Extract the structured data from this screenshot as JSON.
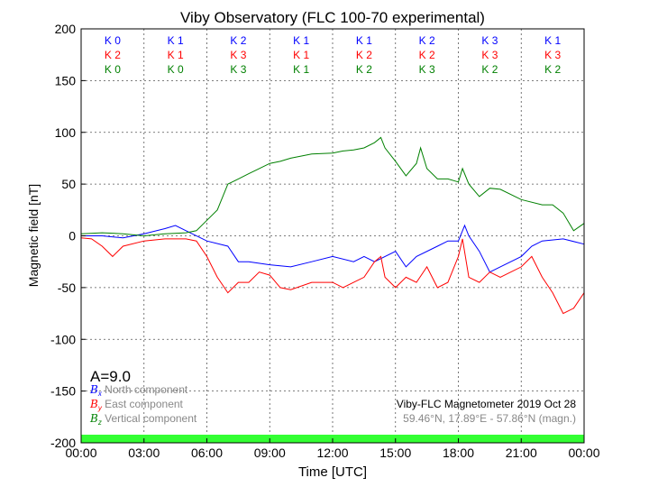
{
  "chart_data": {
    "type": "line",
    "title": "Viby Observatory (FLC 100-70 experimental)",
    "xlabel": "Time [UTC]",
    "ylabel": "Magnetic field [nT]",
    "xlim": [
      0,
      24
    ],
    "ylim": [
      -200,
      200
    ],
    "grid": true,
    "xticks": [
      "00:00",
      "03:00",
      "06:00",
      "09:00",
      "12:00",
      "15:00",
      "18:00",
      "21:00",
      "00:00"
    ],
    "yticks": [
      200,
      150,
      100,
      50,
      0,
      -50,
      -100,
      -150,
      -200
    ],
    "k_indices": {
      "x": [
        "K 0",
        "K 1",
        "K 2",
        "K 1",
        "K 1",
        "K 2",
        "K 3",
        "K 1"
      ],
      "y": [
        "K 2",
        "K 1",
        "K 3",
        "K 1",
        "K 2",
        "K 2",
        "K 3",
        "K 3"
      ],
      "z": [
        "K 0",
        "K 0",
        "K 3",
        "K 1",
        "K 2",
        "K 3",
        "K 2",
        "K 2"
      ]
    },
    "a_index": "A=9.0",
    "legend": [
      {
        "sym": "B",
        "sub": "x",
        "label": "North component",
        "color": "#0000ff"
      },
      {
        "sym": "B",
        "sub": "y",
        "label": "East component",
        "color": "#ff0000"
      },
      {
        "sym": "B",
        "sub": "z",
        "label": "Vertical component",
        "color": "#008000"
      }
    ],
    "legend_placement": "bottom-left",
    "info_line1": "Viby-FLC Magnetometer 2019 Oct 28",
    "info_line2": "59.46°N, 17.89°E - 57.86°N (magn.)",
    "status_bar_color": "#33ff33",
    "series": [
      {
        "name": "Bx",
        "color": "#0000ff",
        "t": [
          0,
          1,
          2,
          3,
          4,
          4.5,
          5,
          6,
          7,
          7.5,
          8,
          9,
          10,
          11,
          12,
          13,
          13.5,
          14,
          15,
          15.5,
          16,
          17,
          17.5,
          18,
          18.3,
          18.5,
          19,
          19.5,
          20,
          21,
          21.5,
          22,
          23,
          24
        ],
        "v": [
          0,
          0,
          -2,
          2,
          7,
          10,
          5,
          -5,
          -10,
          -25,
          -25,
          -28,
          -30,
          -25,
          -20,
          -25,
          -20,
          -25,
          -15,
          -30,
          -20,
          -10,
          -5,
          -5,
          10,
          0,
          -15,
          -35,
          -30,
          -20,
          -10,
          -5,
          -3,
          -8
        ]
      },
      {
        "name": "By",
        "color": "#ff0000",
        "t": [
          0,
          0.5,
          1,
          1.5,
          2,
          3,
          4,
          5,
          5.5,
          6,
          6.5,
          7,
          7.5,
          8,
          8.5,
          9,
          9.5,
          10,
          11,
          12,
          12.5,
          13,
          13.5,
          14,
          14.3,
          14.5,
          15,
          15.5,
          16,
          16.5,
          17,
          17.5,
          18,
          18.2,
          18.5,
          19,
          19.5,
          20,
          21,
          21.5,
          22,
          22.5,
          23,
          23.5,
          24
        ],
        "v": [
          -2,
          -3,
          -10,
          -20,
          -10,
          -5,
          -3,
          -3,
          -5,
          -20,
          -40,
          -55,
          -45,
          -45,
          -35,
          -38,
          -50,
          -52,
          -45,
          -45,
          -50,
          -45,
          -40,
          -25,
          -20,
          -40,
          -50,
          -40,
          -45,
          -30,
          -50,
          -45,
          -20,
          -3,
          -40,
          -45,
          -35,
          -40,
          -30,
          -20,
          -40,
          -55,
          -75,
          -70,
          -55
        ]
      },
      {
        "name": "Bz",
        "color": "#008000",
        "t": [
          0,
          1,
          2,
          3,
          4,
          5,
          5.5,
          6,
          6.5,
          7,
          7.5,
          8,
          8.5,
          9,
          9.5,
          10,
          11,
          12,
          12.5,
          13,
          13.5,
          14,
          14.3,
          14.5,
          15,
          15.5,
          16,
          16.2,
          16.5,
          17,
          17.5,
          18,
          18.2,
          18.5,
          19,
          19.5,
          20,
          21,
          22,
          22.5,
          23,
          23.5,
          24
        ],
        "v": [
          2,
          3,
          2,
          0,
          2,
          3,
          5,
          15,
          25,
          50,
          55,
          60,
          65,
          70,
          72,
          75,
          79,
          80,
          82,
          83,
          85,
          90,
          95,
          85,
          72,
          58,
          70,
          85,
          65,
          55,
          55,
          52,
          65,
          50,
          38,
          46,
          45,
          35,
          30,
          30,
          22,
          5,
          12
        ]
      }
    ]
  }
}
